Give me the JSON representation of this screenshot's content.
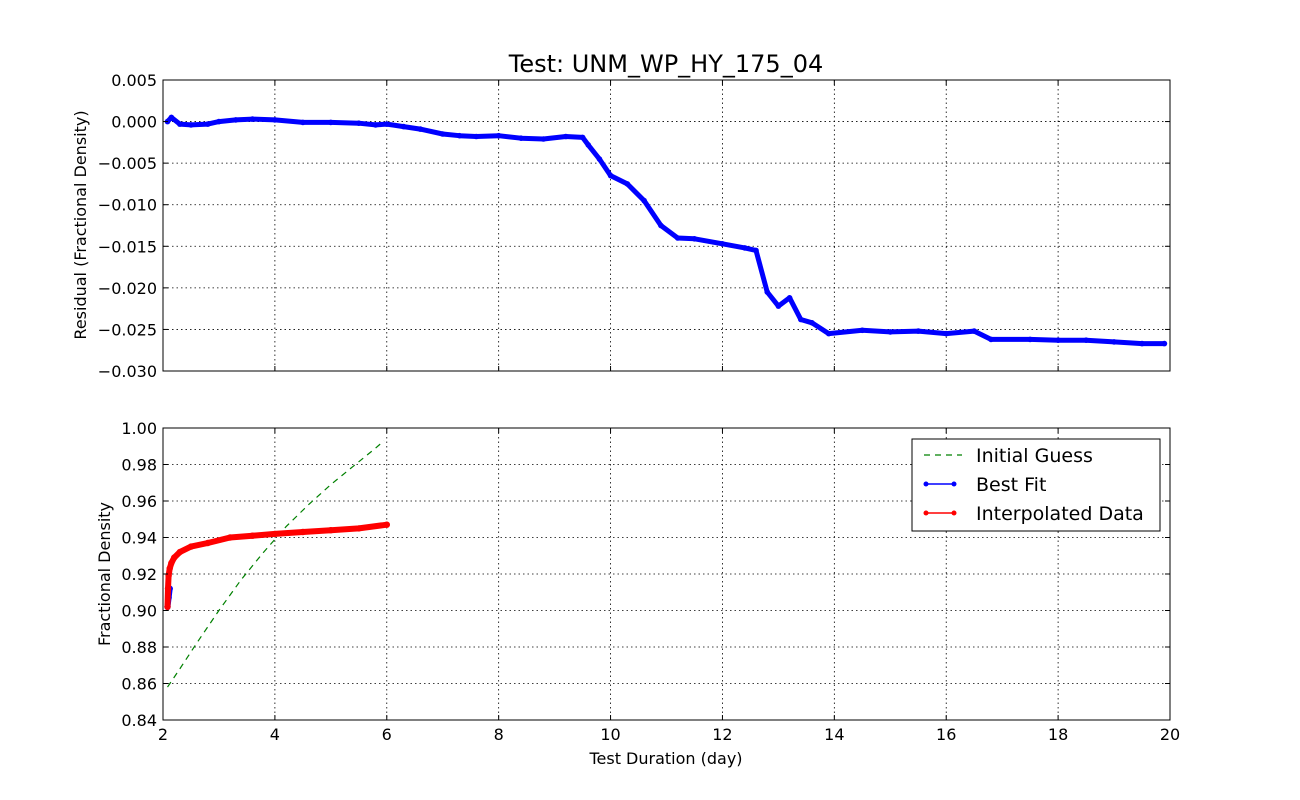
{
  "chart_data": [
    {
      "type": "line",
      "title": "Test: UNM_WP_HY_175_04",
      "xlabel": "",
      "ylabel": "Residual (Fractional Density)",
      "xlim": [
        2,
        20
      ],
      "ylim": [
        -0.03,
        0.005
      ],
      "yticks": [
        "0.005",
        "0.000",
        "−0.005",
        "−0.010",
        "−0.015",
        "−0.020",
        "−0.025",
        "−0.030"
      ],
      "ytick_values": [
        0.005,
        0.0,
        -0.005,
        -0.01,
        -0.015,
        -0.02,
        -0.025,
        -0.03
      ],
      "grid": true,
      "series": [
        {
          "color": "#0000ff",
          "x": [
            2.08,
            2.15,
            2.3,
            2.5,
            2.8,
            3.0,
            3.3,
            3.6,
            4.0,
            4.5,
            5.0,
            5.5,
            5.8,
            6.0,
            6.3,
            6.6,
            7.0,
            7.3,
            7.6,
            8.0,
            8.4,
            8.8,
            9.2,
            9.5,
            9.6,
            9.8,
            10.0,
            10.3,
            10.6,
            10.9,
            11.2,
            11.5,
            12.0,
            12.4,
            12.6,
            12.8,
            13.0,
            13.2,
            13.4,
            13.6,
            13.9,
            14.5,
            15.0,
            15.5,
            16.0,
            16.5,
            16.8,
            17.5,
            18.0,
            18.5,
            19.0,
            19.5,
            19.9
          ],
          "y": [
            0.0,
            0.0005,
            -0.0003,
            -0.0004,
            -0.0003,
            0.0,
            0.0002,
            0.0003,
            0.0002,
            -0.0001,
            -0.0001,
            -0.0002,
            -0.0004,
            -0.0003,
            -0.0006,
            -0.0009,
            -0.0015,
            -0.0017,
            -0.0018,
            -0.0017,
            -0.002,
            -0.0021,
            -0.0018,
            -0.0019,
            -0.0028,
            -0.0045,
            -0.0065,
            -0.0075,
            -0.0095,
            -0.0125,
            -0.014,
            -0.0141,
            -0.0147,
            -0.0152,
            -0.0155,
            -0.0205,
            -0.0222,
            -0.0212,
            -0.0238,
            -0.0242,
            -0.0255,
            -0.0251,
            -0.0253,
            -0.0252,
            -0.0255,
            -0.0252,
            -0.0262,
            -0.0262,
            -0.0263,
            -0.0263,
            -0.0265,
            -0.0267,
            -0.0267
          ]
        }
      ]
    },
    {
      "type": "line",
      "xlabel": "Test Duration (day)",
      "ylabel": "Fractional Density",
      "xlim": [
        2,
        20
      ],
      "ylim": [
        0.84,
        1.0
      ],
      "xticks": [
        "2",
        "4",
        "6",
        "8",
        "10",
        "12",
        "14",
        "16",
        "18",
        "20"
      ],
      "xtick_values": [
        2,
        4,
        6,
        8,
        10,
        12,
        14,
        16,
        18,
        20
      ],
      "yticks": [
        "1.00",
        "0.98",
        "0.96",
        "0.94",
        "0.92",
        "0.90",
        "0.88",
        "0.86",
        "0.84"
      ],
      "ytick_values": [
        1.0,
        0.98,
        0.96,
        0.94,
        0.92,
        0.9,
        0.88,
        0.86,
        0.84
      ],
      "grid": true,
      "legend_position": "top-right",
      "series": [
        {
          "name": "Initial Guess",
          "color": "#008000",
          "style": "dashed",
          "x": [
            2.08,
            2.3,
            2.6,
            3.0,
            3.4,
            3.8,
            4.2,
            4.6,
            5.0,
            5.4,
            5.8,
            5.95
          ],
          "y": [
            0.858,
            0.868,
            0.882,
            0.9,
            0.917,
            0.932,
            0.946,
            0.958,
            0.969,
            0.979,
            0.989,
            0.993
          ]
        },
        {
          "name": "Best Fit",
          "color": "#0000ff",
          "style": "solid-dot",
          "x": [
            2.08,
            2.1,
            2.12
          ],
          "y": [
            0.902,
            0.907,
            0.912
          ]
        },
        {
          "name": "Interpolated Data",
          "color": "#ff0000",
          "style": "solid-dot",
          "x": [
            2.08,
            2.09,
            2.1,
            2.12,
            2.15,
            2.2,
            2.3,
            2.5,
            2.8,
            3.2,
            3.6,
            4.0,
            4.5,
            5.0,
            5.5,
            6.0
          ],
          "y": [
            0.902,
            0.912,
            0.919,
            0.923,
            0.926,
            0.929,
            0.932,
            0.935,
            0.937,
            0.94,
            0.941,
            0.942,
            0.943,
            0.944,
            0.945,
            0.947
          ]
        }
      ]
    }
  ]
}
